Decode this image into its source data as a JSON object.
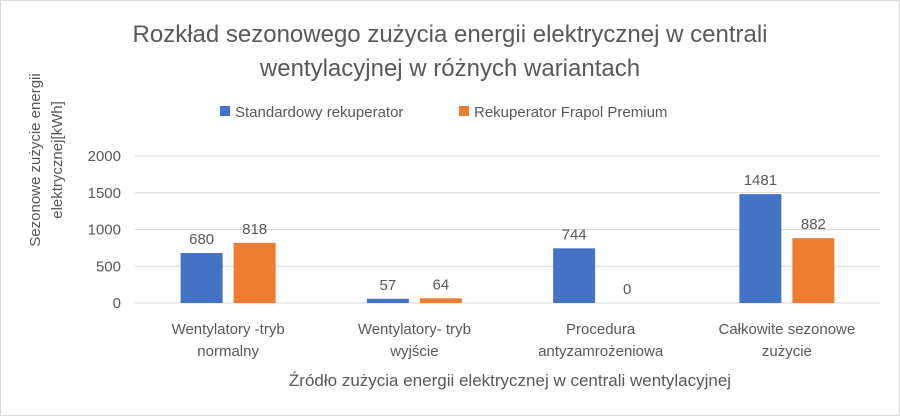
{
  "chart_data": {
    "type": "bar",
    "title_lines": [
      "Rozkład sezonowego zużycia energii elektrycznej w centrali",
      "wentylacyjnej w różnych wariantach"
    ],
    "ylabel_lines": [
      "Sezonowe zużycie energii",
      "elektrycznej[kWh]"
    ],
    "xlabel": "Źródło zużycia energii elektrycznej w centrali wentylacyjnej",
    "categories": [
      [
        "Wentylatory -tryb",
        "normalny"
      ],
      [
        "Wentylatory- tryb",
        "wyjście"
      ],
      [
        "Procedura",
        "antyzamrożeniowa"
      ],
      [
        "Całkowite sezonowe",
        "zużycie"
      ]
    ],
    "series": [
      {
        "name": "Standardowy rekuperator",
        "color": "#4472C4",
        "values": [
          680,
          57,
          744,
          1481
        ]
      },
      {
        "name": "Rekuperator Frapol Premium",
        "color": "#ED7D31",
        "values": [
          818,
          64,
          0,
          882
        ]
      }
    ],
    "yticks": [
      0,
      500,
      1000,
      1500,
      2000
    ],
    "ylim": [
      0,
      2000
    ],
    "grid": true,
    "legend_position": "top"
  }
}
